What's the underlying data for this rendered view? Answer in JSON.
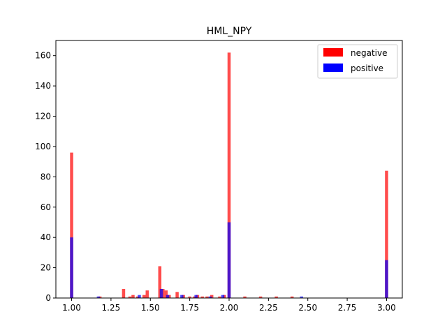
{
  "chart_data": {
    "type": "bar",
    "title": "HML_NPY",
    "xlabel": "",
    "ylabel": "",
    "xlim": [
      0.9,
      3.1
    ],
    "ylim": [
      0,
      170
    ],
    "bin_width": 0.02,
    "xticks": [
      1.0,
      1.25,
      1.5,
      1.75,
      2.0,
      2.25,
      2.5,
      2.75,
      3.0
    ],
    "xtick_labels": [
      "1.00",
      "1.25",
      "1.50",
      "1.75",
      "2.00",
      "2.25",
      "2.50",
      "2.75",
      "3.00"
    ],
    "yticks": [
      0,
      20,
      40,
      60,
      80,
      100,
      120,
      140,
      160
    ],
    "ytick_labels": [
      "0",
      "20",
      "40",
      "60",
      "80",
      "100",
      "120",
      "140",
      "160"
    ],
    "legend_position": "top-right",
    "overlay": true,
    "grid": false,
    "series": [
      {
        "name": "negative",
        "color": "#ff0000",
        "alpha": 0.7,
        "bins": [
          {
            "x": 1.0,
            "value": 96
          },
          {
            "x": 1.18,
            "value": 1
          },
          {
            "x": 1.33,
            "value": 6
          },
          {
            "x": 1.37,
            "value": 1
          },
          {
            "x": 1.39,
            "value": 2
          },
          {
            "x": 1.42,
            "value": 1
          },
          {
            "x": 1.46,
            "value": 2
          },
          {
            "x": 1.48,
            "value": 5
          },
          {
            "x": 1.56,
            "value": 21
          },
          {
            "x": 1.58,
            "value": 6
          },
          {
            "x": 1.6,
            "value": 5
          },
          {
            "x": 1.62,
            "value": 2
          },
          {
            "x": 1.67,
            "value": 4
          },
          {
            "x": 1.71,
            "value": 2
          },
          {
            "x": 1.75,
            "value": 1
          },
          {
            "x": 1.78,
            "value": 1
          },
          {
            "x": 1.8,
            "value": 2
          },
          {
            "x": 1.83,
            "value": 1
          },
          {
            "x": 1.86,
            "value": 1
          },
          {
            "x": 1.89,
            "value": 2
          },
          {
            "x": 1.94,
            "value": 1
          },
          {
            "x": 1.97,
            "value": 2
          },
          {
            "x": 2.0,
            "value": 162
          },
          {
            "x": 2.1,
            "value": 1
          },
          {
            "x": 2.2,
            "value": 1
          },
          {
            "x": 2.3,
            "value": 1
          },
          {
            "x": 2.4,
            "value": 1
          },
          {
            "x": 3.0,
            "value": 84
          }
        ]
      },
      {
        "name": "positive",
        "color": "#0000ff",
        "alpha": 0.7,
        "bins": [
          {
            "x": 1.0,
            "value": 40
          },
          {
            "x": 1.17,
            "value": 1
          },
          {
            "x": 1.43,
            "value": 2
          },
          {
            "x": 1.57,
            "value": 6
          },
          {
            "x": 1.61,
            "value": 2
          },
          {
            "x": 1.7,
            "value": 2
          },
          {
            "x": 1.79,
            "value": 2
          },
          {
            "x": 1.88,
            "value": 1
          },
          {
            "x": 1.96,
            "value": 2
          },
          {
            "x": 2.0,
            "value": 50
          },
          {
            "x": 2.46,
            "value": 1
          },
          {
            "x": 3.0,
            "value": 25
          }
        ]
      }
    ]
  }
}
